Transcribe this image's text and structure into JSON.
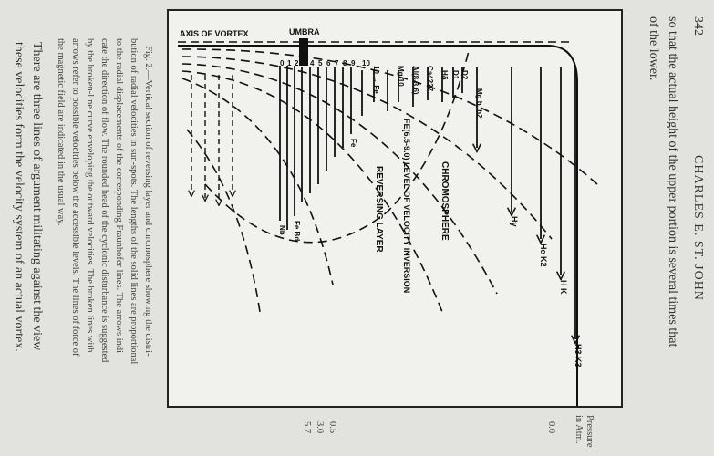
{
  "header": {
    "page_number": "342",
    "running_head": "CHARLES E. ST. JOHN"
  },
  "body_text_top": [
    "so that the actual height of the upper portion is several times that",
    "of the lower."
  ],
  "pressure_column": {
    "header_line1": "Pressure",
    "header_line2": "in Atm.",
    "values": [
      "0.0",
      "0.5",
      "3.0",
      "5.7"
    ]
  },
  "figure": {
    "labels": {
      "axis": "AXIS OF VORTEX",
      "umbra": "UMBRA",
      "chromosphere": "CHROMOSPHERE",
      "reversing_layer": "REVERSING LAYER",
      "inversion": "FE(6.5-9.0) LEVEL OF VELOCITY INVERSION",
      "ca4227": "Ca4227",
      "al": "Al(8-3.6)",
      "mg10": "Mg 10",
      "fe10": "10 → Fe",
      "mgb": "Mg b, b2",
      "hy": "Hγ",
      "hek2": "He K2",
      "hk": "H K",
      "h3k3": "H3 K3",
      "d2": "D2",
      "d1": "D1",
      "hd": "Hδ",
      "fe": "Fe",
      "nb": "Nb",
      "febd": "Fe Bd"
    },
    "line_numbers": [
      "10",
      "9",
      "8",
      "7",
      "6",
      "5",
      "4",
      "3",
      "2",
      "1",
      "0",
      "00",
      "00",
      "00"
    ]
  },
  "caption": [
    "Fig. 2.—Vertical section of reversing layer and chromosphere showing the distri-",
    "bution of radial velocities in sun-spots. The lengths of the solid lines are proportional",
    "to the radial displacements of the corresponding Fraunhofer lines. The arrows indi-",
    "cate the direction of flow. The rounded head of the cyclonic disturbance is suggested",
    "by the broken-line curve enveloping the outward velocities. The broken lines with",
    "arrows refer to possible velocities below the accessible levels. The lines of force of",
    "the magnetic field are indicated in the usual way."
  ],
  "body_text_bottom": [
    "There are three lines of argument militating against the view",
    "these velocities form the velocity system of an actual vortex."
  ]
}
